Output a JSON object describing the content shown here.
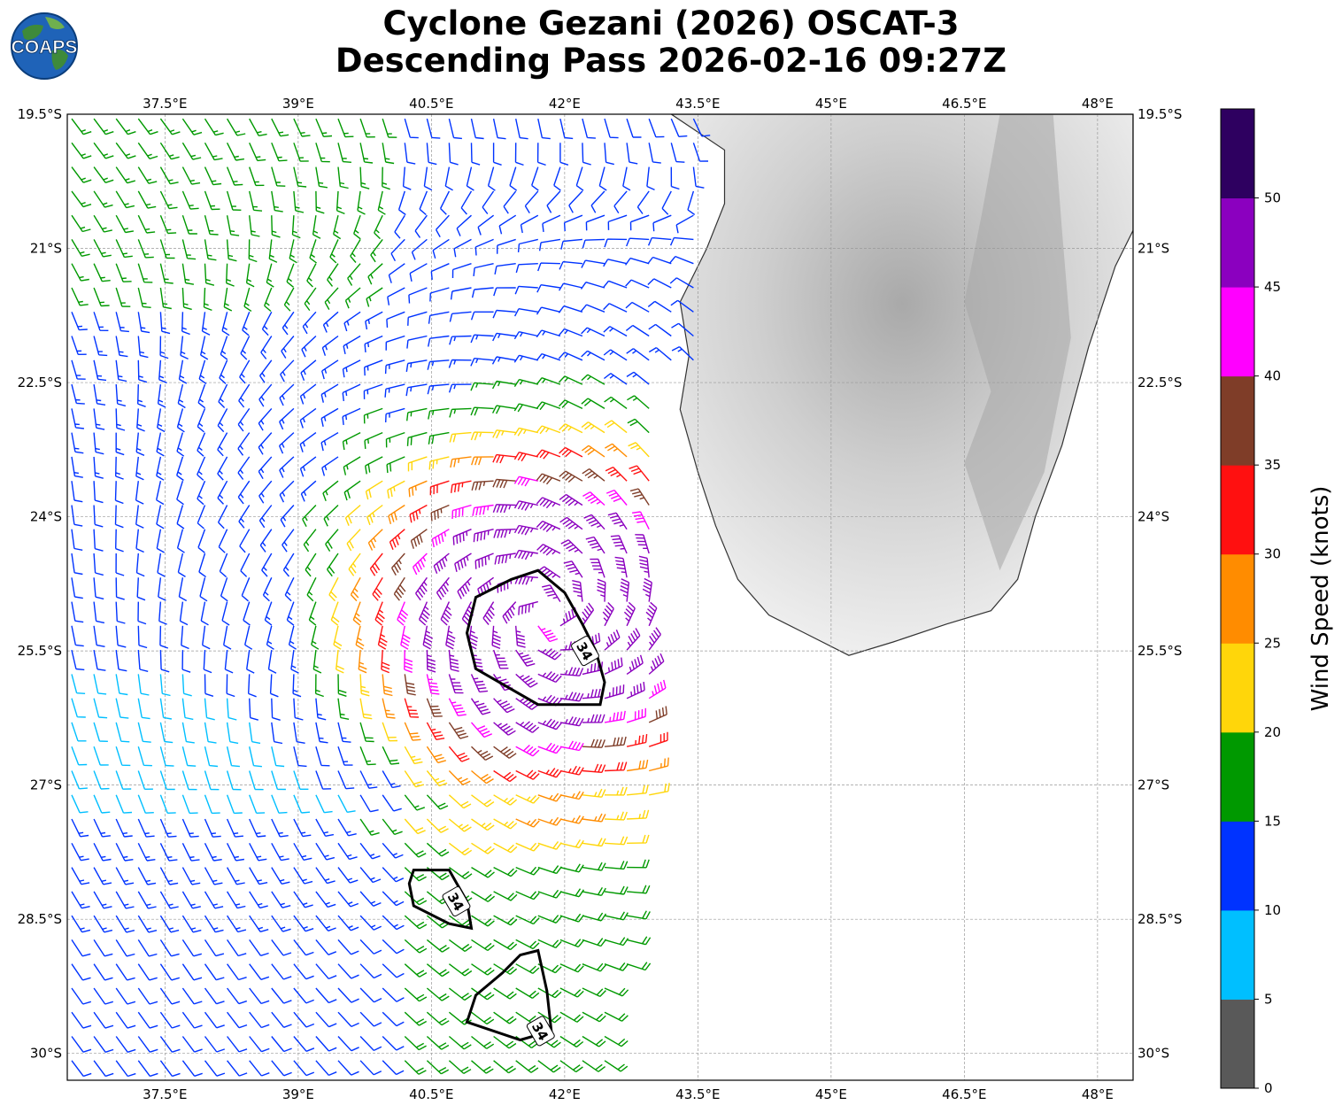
{
  "title": {
    "line1": "Cyclone Gezani (2026) OSCAT-3",
    "line2": "Descending Pass 2026-02-16 09:27Z"
  },
  "logo": {
    "text": "COAPS",
    "icon": "globe-logo-icon"
  },
  "chart_data": {
    "type": "map-wind-barbs",
    "x_axis": {
      "range": [
        36.4,
        48.4
      ],
      "ticks": [
        37.5,
        39,
        40.5,
        42,
        43.5,
        45,
        46.5,
        48
      ],
      "tick_labels": [
        "37.5°E",
        "39°E",
        "40.5°E",
        "42°E",
        "43.5°E",
        "45°E",
        "46.5°E",
        "48°E"
      ]
    },
    "y_axis": {
      "range": [
        -19.5,
        -30.3
      ],
      "ticks": [
        -19.5,
        -21,
        -22.5,
        -24,
        -25.5,
        -27,
        -28.5,
        -30
      ],
      "tick_labels": [
        "19.5°S",
        "21°S",
        "22.5°S",
        "24°S",
        "25.5°S",
        "27°S",
        "28.5°S",
        "30°S"
      ]
    },
    "grid": true,
    "land": "Madagascar (grayscale terrain)",
    "contour": {
      "level": 34,
      "label": "34",
      "units": "knots"
    },
    "colorbar": {
      "label": "Wind Speed (knots)",
      "bounds": [
        0,
        5,
        10,
        15,
        20,
        25,
        30,
        35,
        40,
        45,
        50,
        55
      ],
      "tick_labels": [
        "0",
        "5",
        "10",
        "15",
        "20",
        "25",
        "30",
        "35",
        "40",
        "45",
        "50"
      ],
      "colors": [
        "#595959",
        "#00bfff",
        "#0033ff",
        "#009900",
        "#ffd60a",
        "#ff8c00",
        "#ff1010",
        "#7f3d28",
        "#ff00ff",
        "#8b00bf",
        "#2e0060"
      ]
    },
    "storm_center": {
      "lon": 41.8,
      "lat": -25.1
    }
  }
}
